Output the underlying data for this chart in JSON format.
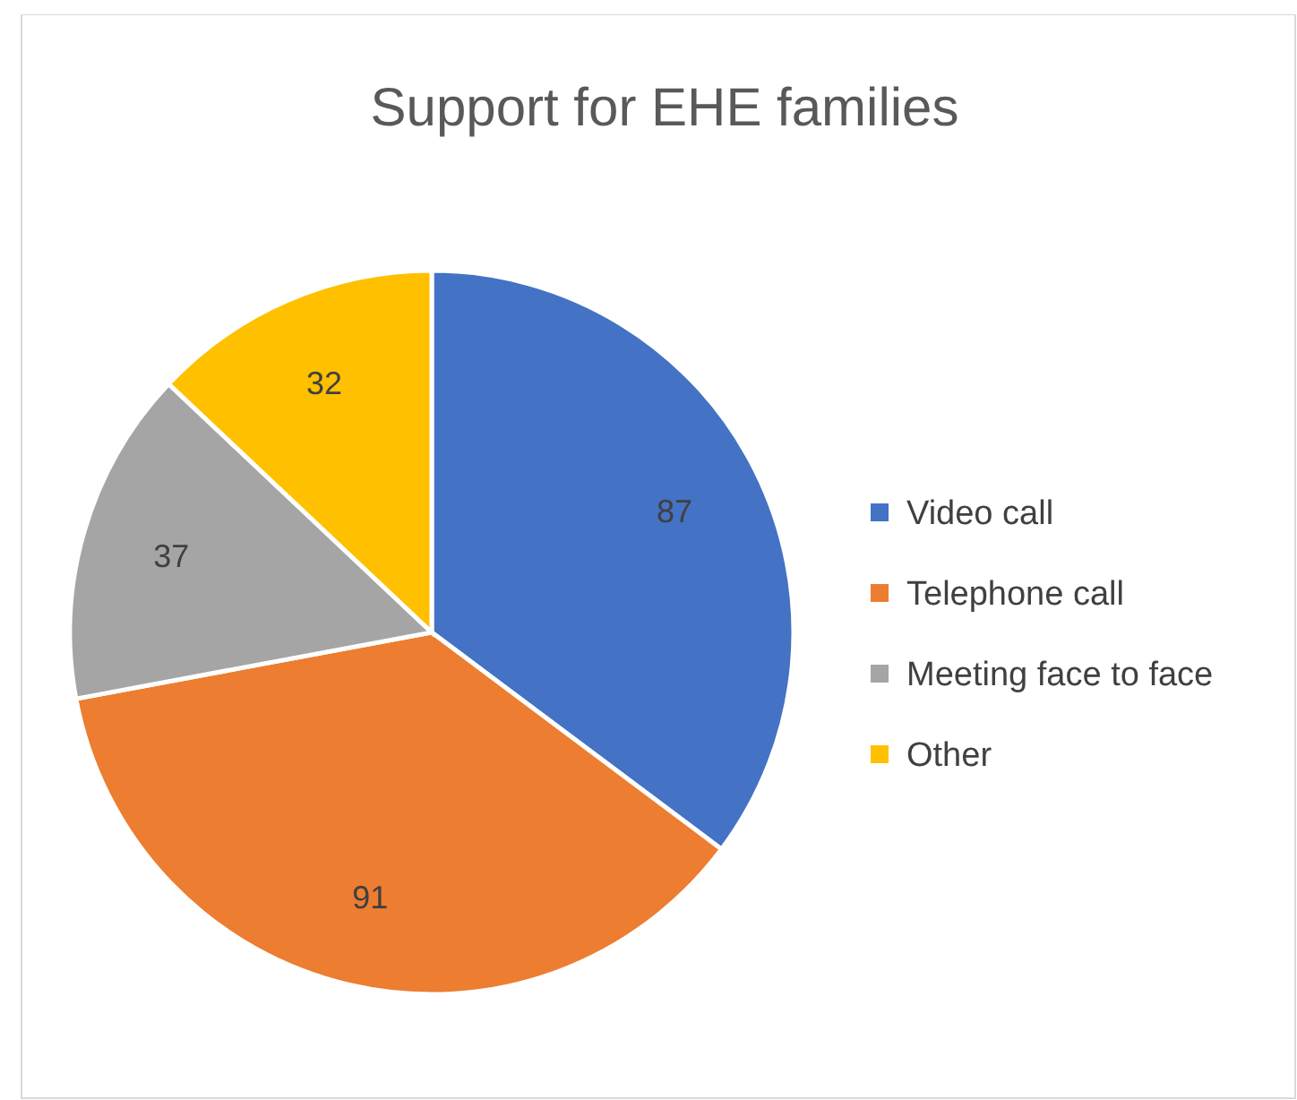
{
  "chart_data": {
    "type": "pie",
    "title": "Support for EHE families",
    "categories": [
      "Video call",
      "Telephone call",
      "Meeting face to face",
      "Other"
    ],
    "values": [
      87,
      91,
      37,
      32
    ],
    "colors": [
      "#4472c4",
      "#ed7d31",
      "#a5a5a5",
      "#ffc000"
    ],
    "data_labels": true,
    "legend": "right"
  }
}
